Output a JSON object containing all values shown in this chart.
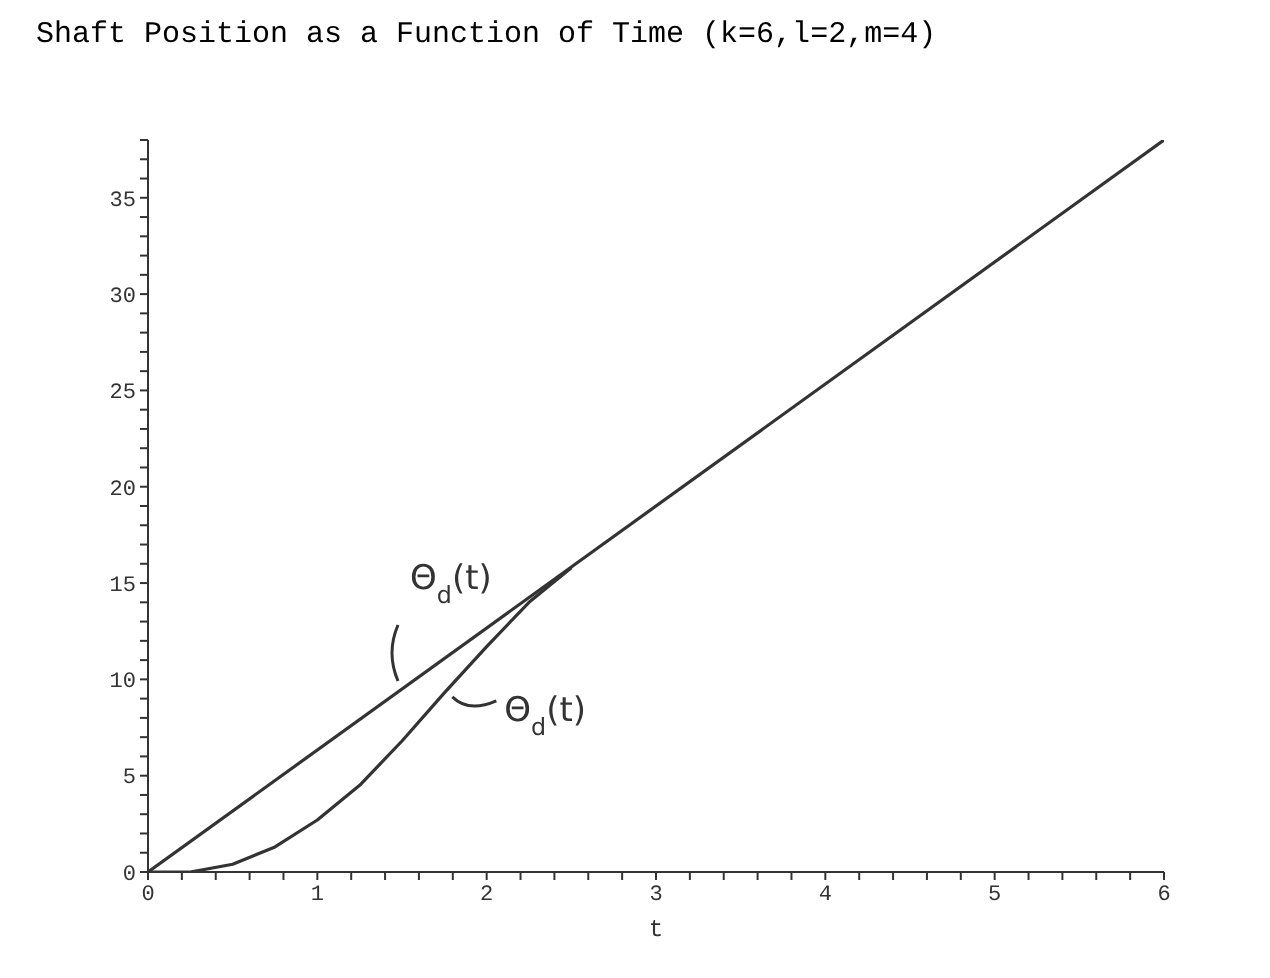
{
  "chart_data": {
    "type": "line",
    "title": "Shaft Position as a Function of Time (k=6,l=2,m=4)",
    "xlabel": "t",
    "series": [
      {
        "color": "#333333",
        "x": [
          0,
          6
        ],
        "values": [
          0,
          38.0
        ]
      },
      {
        "color": "#333333",
        "x": [
          0,
          0.25,
          0.5,
          0.75,
          1,
          1.25,
          1.5,
          1.75,
          2,
          2.25,
          2.5
        ],
        "values": [
          0,
          0,
          0.4,
          1.3,
          2.7,
          4.5,
          6.8,
          9.3,
          11.7,
          14.0,
          15.8
        ]
      }
    ],
    "xlim": [
      0,
      6
    ],
    "xticks": [
      0,
      {
        "value": 0.2,
        "label": null
      },
      {
        "value": 0.4,
        "label": null
      },
      {
        "value": 0.6,
        "label": null
      },
      {
        "value": 0.8,
        "label": null
      },
      1,
      {
        "value": 1.2,
        "label": null
      },
      {
        "value": 1.4,
        "label": null
      },
      {
        "value": 1.6,
        "label": null
      },
      {
        "value": 1.8,
        "label": null
      },
      2,
      {
        "value": 2.2,
        "label": null
      },
      {
        "value": 2.4,
        "label": null
      },
      {
        "value": 2.6,
        "label": null
      },
      {
        "value": 2.8,
        "label": null
      },
      3,
      {
        "value": 3.2,
        "label": null
      },
      {
        "value": 3.4,
        "label": null
      },
      {
        "value": 3.6,
        "label": null
      },
      {
        "value": 3.8,
        "label": null
      },
      4,
      {
        "value": 4.2,
        "label": null
      },
      {
        "value": 4.4,
        "label": null
      },
      {
        "value": 4.6,
        "label": null
      },
      {
        "value": 4.8,
        "label": null
      },
      5,
      {
        "value": 5.2,
        "label": null
      },
      {
        "value": 5.4,
        "label": null
      },
      {
        "value": 5.6,
        "label": null
      },
      {
        "value": 5.8,
        "label": null
      },
      6
    ],
    "ylim": [
      0,
      38
    ],
    "yticks": [
      0,
      {
        "value": 1,
        "label": null
      },
      {
        "value": 2,
        "label": null
      },
      {
        "value": 3,
        "label": null
      },
      {
        "value": 4,
        "label": null
      },
      5,
      {
        "value": 6,
        "label": null
      },
      {
        "value": 7,
        "label": null
      },
      {
        "value": 8,
        "label": null
      },
      {
        "value": 9,
        "label": null
      },
      10,
      {
        "value": 11,
        "label": null
      },
      {
        "value": 12,
        "label": null
      },
      {
        "value": 13,
        "label": null
      },
      {
        "value": 14,
        "label": null
      },
      15,
      {
        "value": 16,
        "label": null
      },
      {
        "value": 17,
        "label": null
      },
      {
        "value": 18,
        "label": null
      },
      {
        "value": 19,
        "label": null
      },
      20,
      {
        "value": 21,
        "label": null
      },
      {
        "value": 22,
        "label": null
      },
      {
        "value": 23,
        "label": null
      },
      {
        "value": 24,
        "label": null
      },
      25,
      {
        "value": 26,
        "label": null
      },
      {
        "value": 27,
        "label": null
      },
      {
        "value": 28,
        "label": null
      },
      {
        "value": 29,
        "label": null
      },
      30,
      {
        "value": 31,
        "label": null
      },
      {
        "value": 32,
        "label": null
      },
      {
        "value": 33,
        "label": null
      },
      {
        "value": 34,
        "label": null
      },
      35,
      {
        "value": 36,
        "label": null
      },
      {
        "value": 37,
        "label": null
      },
      {
        "value": 38,
        "label": null
      }
    ],
    "grid": false,
    "legend": false,
    "marker": "none",
    "line_style": "solid",
    "annotations": [
      {
        "text": "Θ$_{d}$(t)",
        "x": 1.5,
        "y": 9.5
      },
      {
        "text": "Θ$_{d}$(t)",
        "x": 1.75,
        "y": 9.3
      }
    ]
  }
}
